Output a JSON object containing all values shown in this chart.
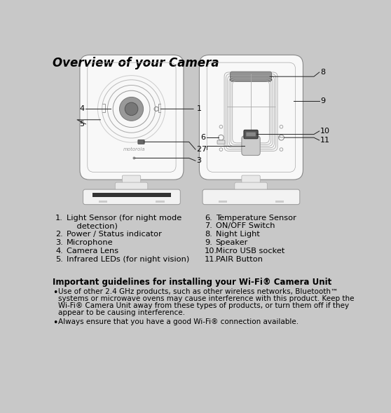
{
  "title": "Overview of your Camera",
  "bg_color": "#c8c8c8",
  "title_font_size": 12,
  "guideline_title": "Important guidelines for installing your Wi-Fi® Camera Unit",
  "bullet1_line1": "Use of other 2.4 GHz products, such as other wireless networks, Bluetooth™",
  "bullet1_line2": "systems or microwave ovens may cause interference with this product. Keep the",
  "bullet1_line3": "Wi-Fi® Camera Unit away from these types of products, or turn them off if they",
  "bullet1_line4": "appear to be causing interference.",
  "bullet2": "Always ensure that you have a good Wi-Fi® connection available.",
  "ann_color": "#222222",
  "body_color": "#f8f8f8",
  "body_edge": "#888888",
  "line_color": "#555555"
}
